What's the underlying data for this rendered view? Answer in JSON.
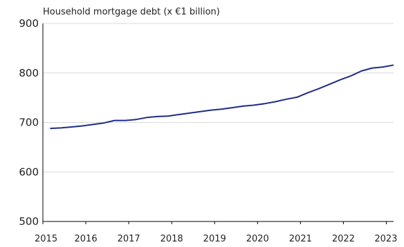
{
  "chart_data": {
    "type": "line",
    "title": "Household mortgage debt (x €1 billion)",
    "xlabel": "",
    "ylabel": "",
    "ylim": [
      500,
      900
    ],
    "xlim": [
      2015,
      2023.17
    ],
    "y_ticks": [
      "500",
      "600",
      "700",
      "800",
      "900"
    ],
    "x_ticks": [
      "2015",
      "2016",
      "2017",
      "2018",
      "2019",
      "2020",
      "2021",
      "2022",
      "2023"
    ],
    "grid": "horizontal",
    "line_color": "#1c2a8a",
    "series": [
      {
        "values": [
          [
            2015.17,
            688
          ],
          [
            2015.42,
            689
          ],
          [
            2015.67,
            691
          ],
          [
            2015.92,
            693
          ],
          [
            2016.17,
            696
          ],
          [
            2016.42,
            699
          ],
          [
            2016.67,
            704
          ],
          [
            2016.92,
            704
          ],
          [
            2017.17,
            706
          ],
          [
            2017.42,
            710
          ],
          [
            2017.67,
            712
          ],
          [
            2017.92,
            713
          ],
          [
            2018.17,
            716
          ],
          [
            2018.42,
            719
          ],
          [
            2018.67,
            722
          ],
          [
            2018.92,
            725
          ],
          [
            2019.17,
            727
          ],
          [
            2019.42,
            730
          ],
          [
            2019.67,
            733
          ],
          [
            2019.92,
            735
          ],
          [
            2020.17,
            738
          ],
          [
            2020.42,
            742
          ],
          [
            2020.67,
            747
          ],
          [
            2020.92,
            751
          ],
          [
            2021.17,
            760
          ],
          [
            2021.42,
            768
          ],
          [
            2021.67,
            777
          ],
          [
            2021.92,
            786
          ],
          [
            2022.17,
            794
          ],
          [
            2022.42,
            804
          ],
          [
            2022.67,
            810
          ],
          [
            2022.92,
            812
          ],
          [
            2023.17,
            816
          ]
        ]
      }
    ]
  }
}
